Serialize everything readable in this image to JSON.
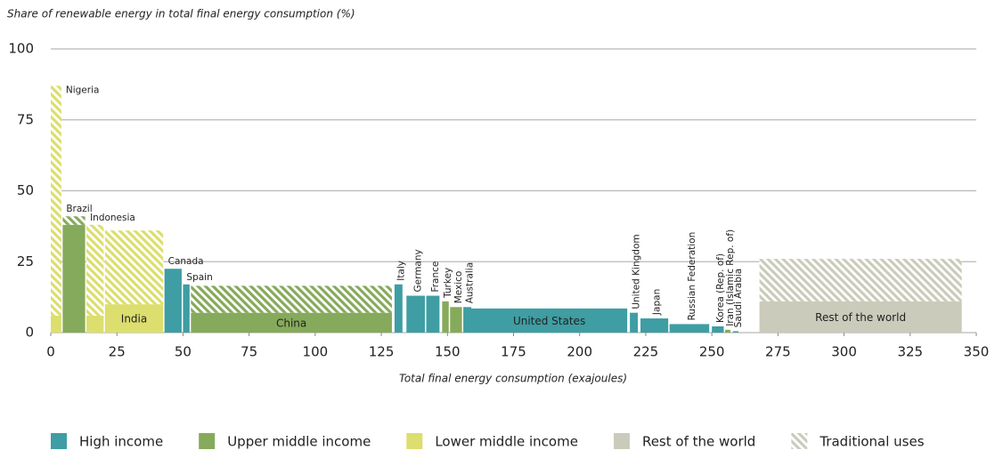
{
  "chart_data": {
    "type": "variable-width-bar",
    "title": "Share of renewable energy in total final energy consumption (%)",
    "x_label": "Total final energy consumption (exajoules)",
    "xlim": [
      0,
      350
    ],
    "xticks": [
      0,
      25,
      50,
      75,
      100,
      125,
      150,
      175,
      200,
      225,
      250,
      275,
      300,
      325,
      350
    ],
    "ylim": [
      0,
      100
    ],
    "yticks": [
      0,
      25,
      50,
      75,
      100
    ],
    "grid": true,
    "groups": [
      {
        "name": "High income",
        "color": "#3e9ea3"
      },
      {
        "name": "Upper middle income",
        "color": "#86aa5b"
      },
      {
        "name": "Lower middle income",
        "color": "#dcde6e"
      },
      {
        "name": "Rest of the world",
        "color": "#cbcbbb"
      }
    ],
    "traditional_name": "Traditional uses",
    "categories": [
      "Nigeria",
      "Brazil",
      "Indonesia",
      "India",
      "Canada",
      "Spain",
      "China",
      "Italy",
      "Germany",
      "France",
      "Turkey",
      "Mexico",
      "Australia",
      "United States",
      "United Kingdom",
      "Japan",
      "Russian Federation",
      "Korea (Rep. of)",
      "Iran (Islamic Rep. of)",
      "Saudi Arabia",
      "Rest of the world"
    ],
    "group": [
      2,
      1,
      2,
      2,
      0,
      0,
      1,
      0,
      0,
      0,
      1,
      1,
      0,
      0,
      0,
      0,
      0,
      0,
      1,
      0,
      3
    ],
    "x": [
      0,
      4.5,
      13.5,
      20.5,
      43,
      50,
      53,
      130,
      134.5,
      142,
      148,
      151,
      156,
      159,
      219,
      223,
      234,
      250,
      255,
      258,
      268
    ],
    "widths": [
      4,
      8.5,
      6.5,
      22,
      6.5,
      2.5,
      76,
      3,
      7,
      5,
      2.5,
      4.5,
      3,
      59,
      3,
      10.5,
      15,
      4.5,
      2,
      2,
      76.5
    ],
    "values": [
      6,
      38,
      6,
      10,
      22.5,
      17,
      7,
      17,
      13,
      13,
      11,
      9,
      9,
      8.5,
      7,
      5,
      3,
      2.2,
      1,
      0.5,
      11
    ],
    "traditional": [
      81,
      3,
      32,
      26,
      null,
      null,
      9.5,
      null,
      null,
      null,
      null,
      null,
      null,
      null,
      null,
      null,
      null,
      null,
      null,
      null,
      15
    ]
  }
}
